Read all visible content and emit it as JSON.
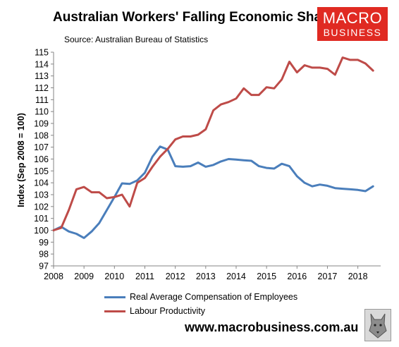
{
  "logo": {
    "line1": "MACRO",
    "line2": "BUSINESS"
  },
  "website": "www.macrobusiness.com.au",
  "chart_data": {
    "type": "line",
    "title": "Australian Workers' Falling Economic Share",
    "subtitle": "Source: Australian Bureau of Statistics",
    "xlabel": "",
    "ylabel": "Index (Sep 2008 = 100)",
    "xlim": [
      2008,
      2018.75
    ],
    "ylim": [
      97,
      115
    ],
    "x_ticks": [
      "2008",
      "2009",
      "2010",
      "2011",
      "2012",
      "2013",
      "2014",
      "2015",
      "2016",
      "2017",
      "2018"
    ],
    "y_ticks": [
      "97",
      "98",
      "99",
      "100",
      "101",
      "102",
      "103",
      "104",
      "105",
      "106",
      "107",
      "108",
      "109",
      "110",
      "111",
      "112",
      "113",
      "114",
      "115"
    ],
    "grid": false,
    "legend_position": "bottom",
    "x": [
      2008.0,
      2008.25,
      2008.5,
      2008.75,
      2009.0,
      2009.25,
      2009.5,
      2009.75,
      2010.0,
      2010.25,
      2010.5,
      2010.75,
      2011.0,
      2011.25,
      2011.5,
      2011.75,
      2012.0,
      2012.25,
      2012.5,
      2012.75,
      2013.0,
      2013.25,
      2013.5,
      2013.75,
      2014.0,
      2014.25,
      2014.5,
      2014.75,
      2015.0,
      2015.25,
      2015.5,
      2015.75,
      2016.0,
      2016.25,
      2016.5,
      2016.75,
      2017.0,
      2017.25,
      2017.5,
      2017.75,
      2018.0,
      2018.25,
      2018.5
    ],
    "series": [
      {
        "name": "Real Average Compensation of Employees",
        "color": "#4a7ebb",
        "values": [
          100.0,
          100.3,
          99.9,
          99.7,
          99.35,
          99.9,
          100.6,
          101.7,
          102.8,
          103.95,
          103.9,
          104.2,
          104.85,
          106.2,
          107.05,
          106.8,
          105.4,
          105.35,
          105.4,
          105.7,
          105.35,
          105.5,
          105.8,
          106.0,
          105.95,
          105.9,
          105.85,
          105.4,
          105.25,
          105.2,
          105.6,
          105.4,
          104.55,
          104.0,
          103.7,
          103.85,
          103.75,
          103.55,
          103.5,
          103.45,
          103.4,
          103.3,
          103.7
        ]
      },
      {
        "name": "Labour Productivity",
        "color": "#be4b48",
        "values": [
          100.0,
          100.2,
          101.7,
          103.45,
          103.65,
          103.2,
          103.2,
          102.7,
          102.8,
          103.0,
          102.0,
          104.0,
          104.4,
          105.35,
          106.2,
          106.85,
          107.65,
          107.9,
          107.9,
          108.05,
          108.5,
          110.1,
          110.6,
          110.8,
          111.1,
          111.95,
          111.4,
          111.4,
          112.05,
          111.95,
          112.7,
          114.2,
          113.3,
          113.9,
          113.7,
          113.7,
          113.6,
          113.1,
          114.55,
          114.35,
          114.35,
          114.05,
          113.45
        ]
      }
    ]
  }
}
